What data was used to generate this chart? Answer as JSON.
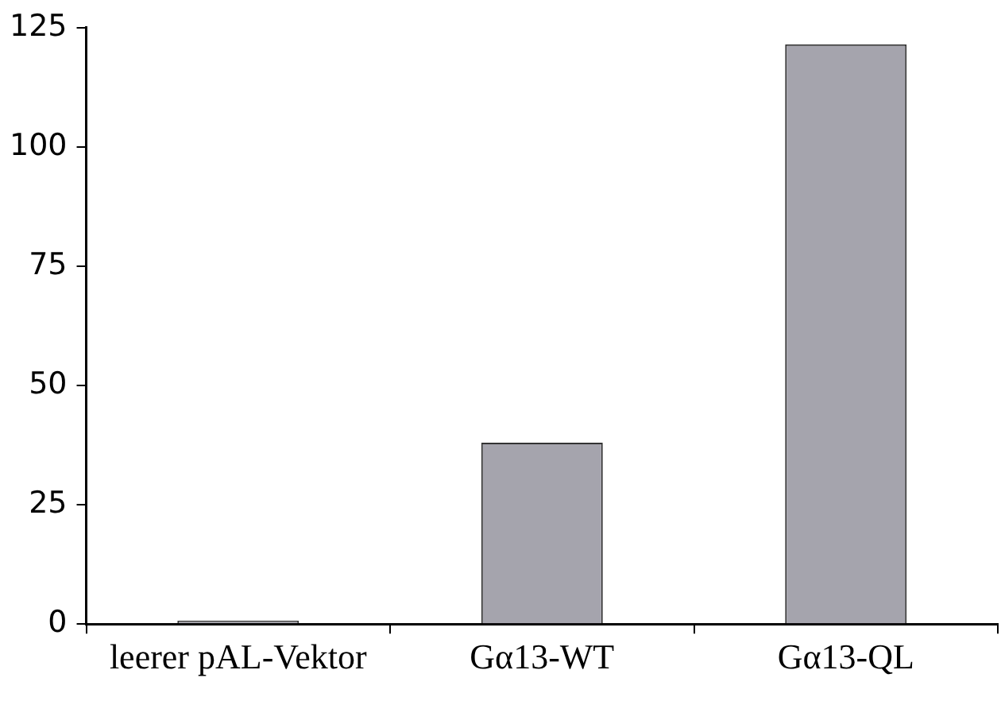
{
  "chart_data": {
    "type": "bar",
    "categories": [
      "leerer pAL-Vektor",
      "Gα13-WT",
      "Gα13-QL"
    ],
    "values": [
      0.7,
      38,
      121.5
    ],
    "color": "#a5a4ad",
    "ylim": [
      0,
      125
    ],
    "yticks": [
      0,
      25,
      50,
      75,
      100,
      125
    ],
    "grid": false,
    "legend": false
  }
}
